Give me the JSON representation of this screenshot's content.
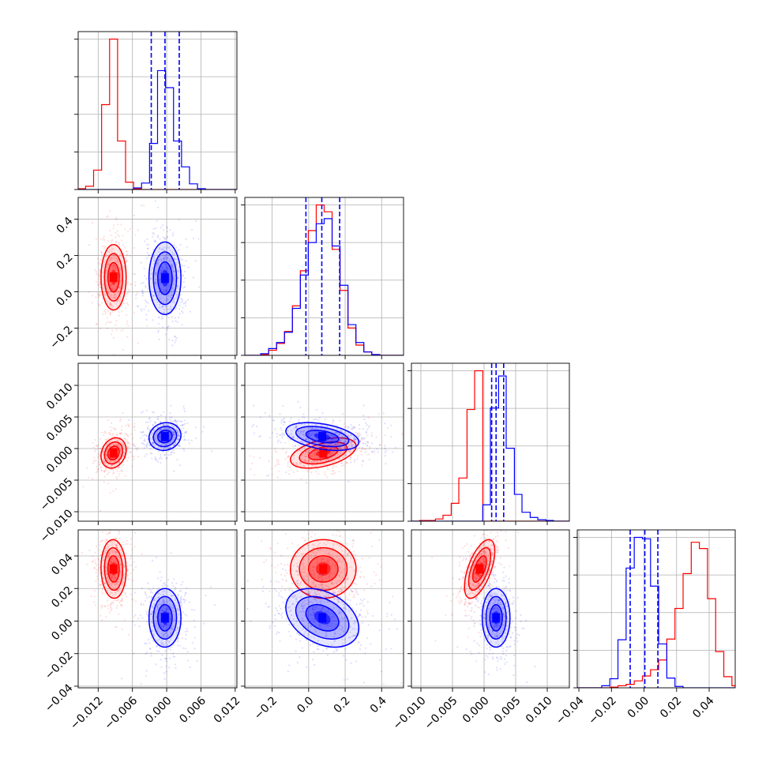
{
  "chart_data": {
    "type": "corner",
    "title": "",
    "parameters": [
      "",
      "",
      "",
      ""
    ],
    "series": [
      {
        "name": "",
        "color": "#ff0000"
      },
      {
        "name": "",
        "color": "#0000ff"
      }
    ],
    "grid": true,
    "axes": [
      {
        "range": [
          -0.0155,
          0.0123
        ],
        "ticks": [
          -0.012,
          -0.006,
          0.0,
          0.006,
          0.012
        ],
        "tick_labels": [
          "−0.012",
          "−0.006",
          "0.000",
          "0.006",
          "0.012"
        ]
      },
      {
        "range": [
          -0.35,
          0.52
        ],
        "ticks": [
          -0.2,
          0.0,
          0.2,
          0.4
        ],
        "tick_labels": [
          "−0.2",
          "0.0",
          "0.2",
          "0.4"
        ]
      },
      {
        "range": [
          -0.0115,
          0.0135
        ],
        "ticks": [
          -0.01,
          -0.005,
          0.0,
          0.005,
          0.01
        ],
        "tick_labels": [
          "−0.010",
          "−0.005",
          "0.000",
          "0.005",
          "0.010"
        ]
      },
      {
        "range": [
          -0.041,
          0.056
        ],
        "ticks": [
          -0.04,
          -0.02,
          0.0,
          0.02,
          0.04
        ],
        "tick_labels": [
          "−0.04",
          "−0.02",
          "0.00",
          "0.02",
          "0.04"
        ]
      }
    ],
    "histograms": [
      {
        "bin_edges": [
          -0.0155,
          -0.0142,
          -0.0128,
          -0.0114,
          -0.01,
          -0.0086,
          -0.0072,
          -0.0058,
          -0.0044,
          -0.003,
          -0.0016,
          -0.0002,
          0.0012,
          0.0026,
          0.004,
          0.0054,
          0.0068,
          0.0082,
          0.0096,
          0.011,
          0.0123
        ],
        "series_counts": [
          [
            1,
            4,
            24,
            105,
            186,
            60,
            9,
            1,
            0,
            0,
            0,
            0,
            0,
            0,
            0,
            0,
            0,
            0,
            0,
            0
          ],
          [
            0,
            0,
            0,
            0,
            0,
            0,
            0,
            2,
            8,
            57,
            147,
            126,
            60,
            28,
            7,
            1,
            0,
            0,
            0,
            0
          ]
        ],
        "quantiles": [
          -0.0027,
          -0.0003,
          0.0022
        ]
      },
      {
        "bin_edges": [
          -0.35,
          -0.3065,
          -0.263,
          -0.2195,
          -0.176,
          -0.1325,
          -0.089,
          -0.0455,
          -0.002,
          0.0415,
          0.085,
          0.1285,
          0.172,
          0.2155,
          0.259,
          0.3025,
          0.346,
          0.3895,
          0.433,
          0.4765,
          0.52
        ],
        "series_counts": [
          [
            0,
            0,
            1,
            6,
            14,
            28,
            58,
            99,
            146,
            176,
            168,
            124,
            76,
            32,
            12,
            4,
            1,
            0,
            0,
            0
          ],
          [
            0,
            0,
            2,
            8,
            15,
            27,
            55,
            94,
            132,
            154,
            160,
            128,
            82,
            36,
            15,
            4,
            1,
            0,
            0,
            0
          ]
        ],
        "quantiles": [
          -0.015,
          0.072,
          0.17
        ]
      },
      {
        "bin_edges": [
          -0.0115,
          -0.0102,
          -0.009,
          -0.0077,
          -0.0065,
          -0.0052,
          -0.004,
          -0.0027,
          -0.0015,
          -0.0002,
          0.001,
          0.0023,
          0.0035,
          0.0048,
          0.006,
          0.0073,
          0.0085,
          0.0098,
          0.011,
          0.0123,
          0.0135
        ],
        "series_counts": [
          [
            0,
            1,
            1,
            3,
            8,
            24,
            58,
            150,
            202,
            0,
            0,
            0,
            0,
            0,
            0,
            0,
            0,
            0,
            0,
            0
          ],
          [
            0,
            0,
            0,
            0,
            0,
            0,
            0,
            0,
            0,
            22,
            152,
            195,
            98,
            36,
            12,
            5,
            2,
            1,
            0,
            0
          ]
        ],
        "quantiles": [
          0.0012,
          0.0019,
          0.0031
        ]
      },
      {
        "bin_edges": [
          -0.041,
          -0.036,
          -0.031,
          -0.026,
          -0.021,
          -0.016,
          -0.011,
          -0.006,
          -0.001,
          0.004,
          0.009,
          0.014,
          0.019,
          0.024,
          0.029,
          0.034,
          0.039,
          0.044,
          0.049,
          0.054,
          0.056
        ],
        "series_counts": [
          [
            0,
            0,
            0,
            0,
            1,
            3,
            5,
            10,
            17,
            26,
            40,
            70,
            114,
            164,
            209,
            200,
            128,
            52,
            16,
            3
          ],
          [
            0,
            0,
            0,
            3,
            13,
            69,
            172,
            216,
            214,
            146,
            63,
            14,
            2,
            0,
            0,
            0,
            0,
            0,
            0,
            0
          ]
        ],
        "quantiles": [
          -0.0085,
          0.0005,
          0.0085
        ]
      }
    ],
    "pair_distributions": {
      "series_means": [
        [
          -0.0093,
          0.08,
          -0.0007,
          0.032
        ],
        [
          -0.0003,
          0.075,
          0.0019,
          0.002
        ]
      ],
      "series_sigmas": [
        [
          0.0011,
          0.09,
          0.0012,
          0.009
        ],
        [
          0.0014,
          0.1,
          0.0011,
          0.009
        ]
      ],
      "series_correlations": [
        {
          "1-0": 0.0,
          "2-0": 0.2,
          "2-1": 0.45,
          "3-0": -0.05,
          "3-1": 0.0,
          "3-2": 0.6
        },
        {
          "1-0": 0.0,
          "2-0": 0.1,
          "2-1": -0.4,
          "3-0": 0.0,
          "3-1": -0.35,
          "3-2": 0.0
        }
      ]
    }
  }
}
